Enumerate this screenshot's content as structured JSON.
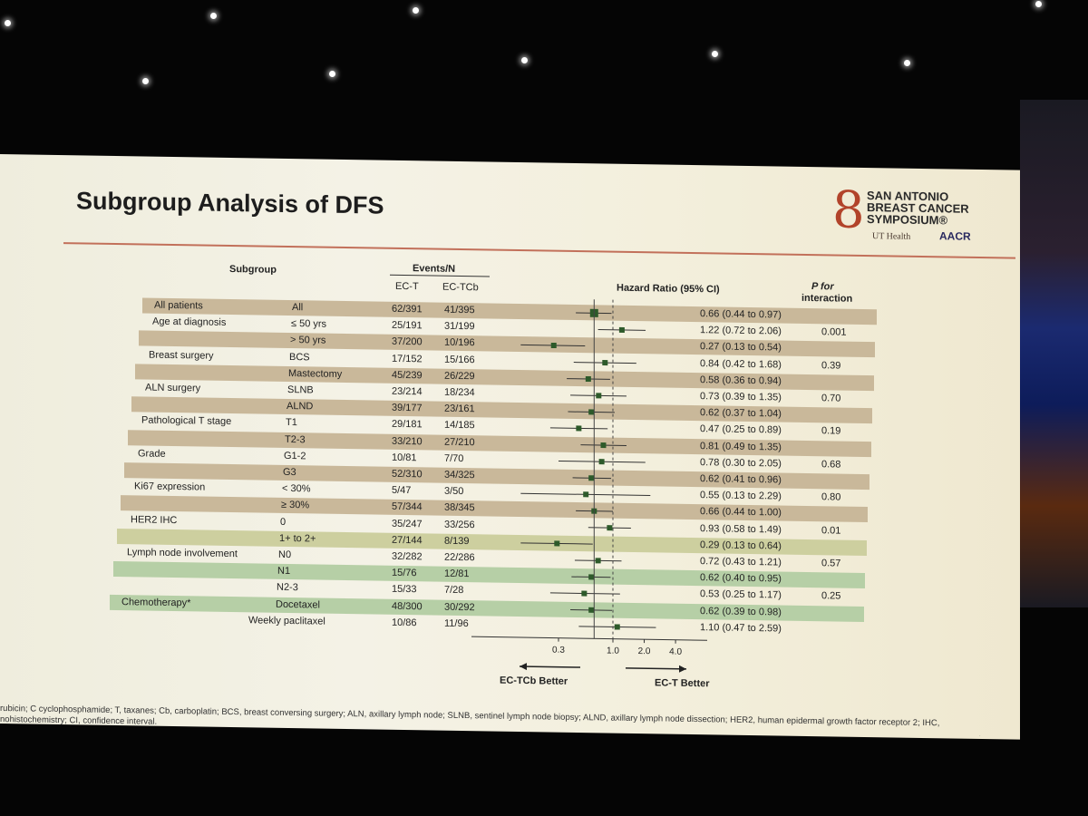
{
  "slide": {
    "title": "Subgroup Analysis of DFS",
    "logo": {
      "name_lines": [
        "SAN ANTONIO",
        "BREAST CANCER",
        "SYMPOSIUM®"
      ],
      "partner1": "UT Health",
      "partner2": "AACR"
    },
    "headers": {
      "subgroup": "Subgroup",
      "events_n": "Events/N",
      "arm1": "EC-T",
      "arm2": "EC-TCb",
      "hr": "Hazard Ratio (95% CI)",
      "p_line1": "P for",
      "p_line2": "interaction"
    },
    "x_axis": {
      "ticks": [
        "0.3",
        "1.0",
        "2.0",
        "4.0"
      ],
      "left_label": "EC-TCb Better",
      "right_label": "EC-T Better"
    },
    "footnote": "rubicin; C cyclophosphamide; T, taxanes; Cb, carboplatin; BCS, breast conversing surgery; ALN, axillary lymph node; SLNB, sentinel lymph node biopsy; ALND, axillary lymph node dissection; HER2, human epidermal growth factor receptor 2; IHC, nohistochemistry; CI, confidence interval.",
    "colors": {
      "tan": "#c9b89a",
      "olive": "#cdcf9f",
      "green": "#b6cfa6",
      "marker": "#2d5a2a",
      "rule": "#c2705a"
    }
  },
  "chart_data": {
    "type": "forest",
    "title": "Subgroup Analysis of DFS",
    "xlabel": "Hazard Ratio (95% CI)",
    "x_scale": "log",
    "reference_line": 1.0,
    "rows": [
      {
        "group": "All patients",
        "sub": "All",
        "ect": "62/391",
        "ectcb": "41/395",
        "hr_text": "0.66 (0.44 to 0.97)",
        "p": "",
        "hr": 0.66,
        "lo": 0.44,
        "hi": 0.97,
        "band": "tan"
      },
      {
        "group": "Age at diagnosis",
        "sub": "≤ 50 yrs",
        "ect": "25/191",
        "ectcb": "31/199",
        "hr_text": "1.22 (0.72 to 2.06)",
        "p": "0.001",
        "hr": 1.22,
        "lo": 0.72,
        "hi": 2.06,
        "band": ""
      },
      {
        "group": "",
        "sub": "> 50 yrs",
        "ect": "37/200",
        "ectcb": "10/196",
        "hr_text": "0.27 (0.13 to 0.54)",
        "p": "",
        "hr": 0.27,
        "lo": 0.13,
        "hi": 0.54,
        "band": "tan"
      },
      {
        "group": "Breast surgery",
        "sub": "BCS",
        "ect": "17/152",
        "ectcb": "15/166",
        "hr_text": "0.84 (0.42 to 1.68)",
        "p": "0.39",
        "hr": 0.84,
        "lo": 0.42,
        "hi": 1.68,
        "band": ""
      },
      {
        "group": "",
        "sub": "Mastectomy",
        "ect": "45/239",
        "ectcb": "26/229",
        "hr_text": "0.58 (0.36 to 0.94)",
        "p": "",
        "hr": 0.58,
        "lo": 0.36,
        "hi": 0.94,
        "band": "tan"
      },
      {
        "group": "ALN surgery",
        "sub": "SLNB",
        "ect": "23/214",
        "ectcb": "18/234",
        "hr_text": "0.73 (0.39 to 1.35)",
        "p": "0.70",
        "hr": 0.73,
        "lo": 0.39,
        "hi": 1.35,
        "band": ""
      },
      {
        "group": "",
        "sub": "ALND",
        "ect": "39/177",
        "ectcb": "23/161",
        "hr_text": "0.62 (0.37 to 1.04)",
        "p": "",
        "hr": 0.62,
        "lo": 0.37,
        "hi": 1.04,
        "band": "tan"
      },
      {
        "group": "Pathological T stage",
        "sub": "T1",
        "ect": "29/181",
        "ectcb": "14/185",
        "hr_text": "0.47 (0.25 to 0.89)",
        "p": "0.19",
        "hr": 0.47,
        "lo": 0.25,
        "hi": 0.89,
        "band": ""
      },
      {
        "group": "",
        "sub": "T2-3",
        "ect": "33/210",
        "ectcb": "27/210",
        "hr_text": "0.81 (0.49 to 1.35)",
        "p": "",
        "hr": 0.81,
        "lo": 0.49,
        "hi": 1.35,
        "band": "tan"
      },
      {
        "group": "Grade",
        "sub": "G1-2",
        "ect": "10/81",
        "ectcb": "7/70",
        "hr_text": "0.78 (0.30 to 2.05)",
        "p": "0.68",
        "hr": 0.78,
        "lo": 0.3,
        "hi": 2.05,
        "band": ""
      },
      {
        "group": "",
        "sub": "G3",
        "ect": "52/310",
        "ectcb": "34/325",
        "hr_text": "0.62 (0.41 to 0.96)",
        "p": "",
        "hr": 0.62,
        "lo": 0.41,
        "hi": 0.96,
        "band": "tan"
      },
      {
        "group": "Ki67 expression",
        "sub": "< 30%",
        "ect": "5/47",
        "ectcb": "3/50",
        "hr_text": "0.55 (0.13 to 2.29)",
        "p": "0.80",
        "hr": 0.55,
        "lo": 0.13,
        "hi": 2.29,
        "band": ""
      },
      {
        "group": "",
        "sub": "≥ 30%",
        "ect": "57/344",
        "ectcb": "38/345",
        "hr_text": "0.66 (0.44 to 1.00)",
        "p": "",
        "hr": 0.66,
        "lo": 0.44,
        "hi": 1.0,
        "band": "tan"
      },
      {
        "group": "HER2 IHC",
        "sub": "0",
        "ect": "35/247",
        "ectcb": "33/256",
        "hr_text": "0.93 (0.58 to 1.49)",
        "p": "0.01",
        "hr": 0.93,
        "lo": 0.58,
        "hi": 1.49,
        "band": ""
      },
      {
        "group": "",
        "sub": "1+ to 2+",
        "ect": "27/144",
        "ectcb": "8/139",
        "hr_text": "0.29 (0.13 to 0.64)",
        "p": "",
        "hr": 0.29,
        "lo": 0.13,
        "hi": 0.64,
        "band": "olive"
      },
      {
        "group": "Lymph node involvement",
        "sub": "N0",
        "ect": "32/282",
        "ectcb": "22/286",
        "hr_text": "0.72 (0.43 to 1.21)",
        "p": "0.57",
        "hr": 0.72,
        "lo": 0.43,
        "hi": 1.21,
        "band": ""
      },
      {
        "group": "",
        "sub": "N1",
        "ect": "15/76",
        "ectcb": "12/81",
        "hr_text": "0.62 (0.40 to 0.95)",
        "p": "",
        "hr": 0.62,
        "lo": 0.4,
        "hi": 0.95,
        "band": "green"
      },
      {
        "group": "",
        "sub": "N2-3",
        "ect": "15/33",
        "ectcb": "7/28",
        "hr_text": "0.53 (0.25 to 1.17)",
        "p": "0.25",
        "hr": 0.53,
        "lo": 0.25,
        "hi": 1.17,
        "band": ""
      },
      {
        "group": "Chemotherapy*",
        "sub": "Docetaxel",
        "ect": "48/300",
        "ectcb": "30/292",
        "hr_text": "0.62 (0.39 to 0.98)",
        "p": "",
        "hr": 0.62,
        "lo": 0.39,
        "hi": 0.98,
        "band": "green"
      },
      {
        "group": "",
        "sub": "Weekly paclitaxel",
        "ect": "10/86",
        "ectcb": "11/96",
        "hr_text": "1.10 (0.47 to 2.59)",
        "p": "",
        "hr": 1.1,
        "lo": 0.47,
        "hi": 2.59,
        "band": ""
      }
    ]
  }
}
